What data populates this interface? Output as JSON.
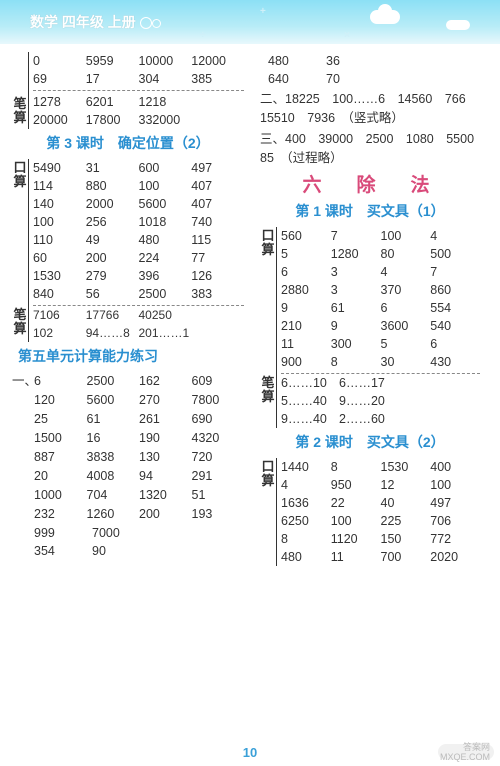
{
  "header": {
    "title": "数学 四年级 上册",
    "page_num": "10"
  },
  "titles": {
    "lesson3": "第 3 课时　确定位置（2）",
    "unit5": "第五单元计算能力练习",
    "unit6": "六　除　法",
    "lesson1r": "第 1 课时　买文具（1）",
    "lesson2r": "第 2 课时　买文具（2）"
  },
  "labels": {
    "bi": "笔",
    "suan": "算",
    "kou": "口"
  },
  "leftTop": {
    "pre": [
      [
        "0",
        "5959",
        "10000",
        "12000"
      ],
      [
        "69",
        "17",
        "304",
        "385"
      ]
    ],
    "post": [
      [
        "1278",
        "6201",
        "1218",
        ""
      ],
      [
        "20000",
        "17800",
        "332000",
        ""
      ]
    ]
  },
  "lesson3": {
    "ks": [
      [
        "5490",
        "31",
        "600",
        "497"
      ],
      [
        "114",
        "880",
        "100",
        "407"
      ],
      [
        "140",
        "2000",
        "5600",
        "407"
      ],
      [
        "100",
        "256",
        "1018",
        "740"
      ],
      [
        "110",
        "49",
        "480",
        "115"
      ],
      [
        "60",
        "200",
        "224",
        "77"
      ],
      [
        "1530",
        "279",
        "396",
        "126"
      ],
      [
        "840",
        "56",
        "2500",
        "383"
      ]
    ],
    "bs": [
      [
        "7106",
        "17766",
        "40250",
        ""
      ],
      [
        "102",
        "94……8",
        "201……1",
        ""
      ]
    ]
  },
  "unit5": {
    "rows": [
      [
        "6",
        "2500",
        "162",
        "609"
      ],
      [
        "120",
        "5600",
        "270",
        "7800"
      ],
      [
        "25",
        "61",
        "261",
        "690"
      ],
      [
        "1500",
        "16",
        "190",
        "4320"
      ],
      [
        "887",
        "3838",
        "130",
        "720"
      ],
      [
        "20",
        "4008",
        "94",
        "291"
      ],
      [
        "1000",
        "704",
        "1320",
        "51"
      ],
      [
        "232",
        "1260",
        "200",
        "193"
      ]
    ],
    "tail": [
      [
        "999",
        "7000"
      ],
      [
        "354",
        "90"
      ]
    ]
  },
  "rightTop": [
    [
      "480",
      "36"
    ],
    [
      "640",
      "70"
    ]
  ],
  "rightLines": {
    "two": "二、18225　100……6　14560　766　15510　7936　（竖式略）",
    "three": "三、400　39000　2500　1080　5500　85　（过程略）"
  },
  "lesson1r": {
    "ks": [
      [
        "560",
        "7",
        "100",
        "4"
      ],
      [
        "5",
        "1280",
        "80",
        "500"
      ],
      [
        "6",
        "3",
        "4",
        "7"
      ],
      [
        "2880",
        "3",
        "370",
        "860"
      ],
      [
        "9",
        "61",
        "6",
        "554"
      ],
      [
        "210",
        "9",
        "3600",
        "540"
      ],
      [
        "11",
        "300",
        "5",
        "6"
      ],
      [
        "900",
        "8",
        "30",
        "430"
      ]
    ],
    "bs": [
      [
        "6……10",
        "6……17"
      ],
      [
        "5……40",
        "9……20"
      ],
      [
        "9……40",
        "2……60"
      ]
    ]
  },
  "lesson2r": {
    "ks": [
      [
        "1440",
        "8",
        "1530",
        "400"
      ],
      [
        "4",
        "950",
        "12",
        "100"
      ],
      [
        "1636",
        "22",
        "40",
        "497"
      ],
      [
        "6250",
        "100",
        "225",
        "706"
      ],
      [
        "8",
        "1120",
        "150",
        "772"
      ],
      [
        "480",
        "11",
        "700",
        "2020"
      ]
    ]
  }
}
